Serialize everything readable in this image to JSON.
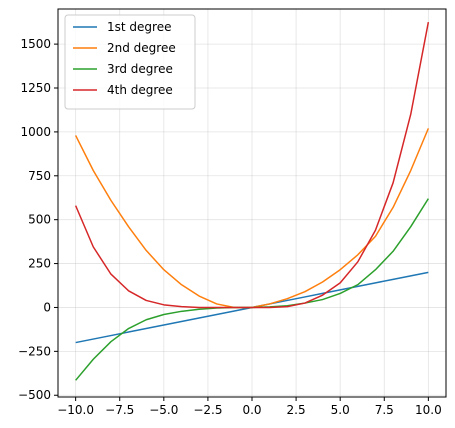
{
  "chart_data": {
    "type": "line",
    "title": "",
    "xlabel": "",
    "ylabel": "",
    "xlim": [
      -11,
      11
    ],
    "ylim": [
      -510,
      1700
    ],
    "grid": true,
    "legend_position": "top-left",
    "xticks": [
      -10,
      -7.5,
      -5,
      -2.5,
      0,
      2.5,
      5,
      7.5,
      10
    ],
    "xtick_labels": [
      "−10.0",
      "−7.5",
      "−5.0",
      "−2.5",
      "0.0",
      "2.5",
      "5.0",
      "7.5",
      "10.0"
    ],
    "yticks": [
      -500,
      -250,
      0,
      250,
      500,
      750,
      1000,
      1250,
      1500
    ],
    "ytick_labels": [
      "−500",
      "−250",
      "0",
      "250",
      "500",
      "750",
      "1000",
      "1250",
      "1500"
    ],
    "x": [
      -10,
      -9,
      -8,
      -7,
      -6,
      -5,
      -4,
      -3,
      -2,
      -1,
      0,
      1,
      2,
      3,
      4,
      5,
      6,
      7,
      8,
      9,
      10
    ],
    "series": [
      {
        "name": "1st degree",
        "color": "#1f77b4",
        "values": [
          -200,
          -180,
          -160,
          -140,
          -120,
          -100,
          -80,
          -60,
          -40,
          -20,
          0,
          20,
          40,
          60,
          80,
          100,
          120,
          140,
          160,
          180,
          200
        ]
      },
      {
        "name": "2nd degree",
        "color": "#ff7f0e",
        "values": [
          980,
          780,
          610,
          460,
          325,
          215,
          130,
          65,
          20,
          0,
          0,
          20,
          50,
          90,
          145,
          215,
          300,
          405,
          570,
          780,
          1020
        ]
      },
      {
        "name": "3rd degree",
        "color": "#2ca02c",
        "values": [
          -415,
          -295,
          -195,
          -120,
          -70,
          -40,
          -22,
          -10,
          -3,
          0,
          0,
          3,
          10,
          25,
          45,
          80,
          130,
          215,
          320,
          460,
          620
        ]
      },
      {
        "name": "4th degree",
        "color": "#d62728",
        "values": [
          580,
          345,
          190,
          95,
          40,
          15,
          5,
          0,
          0,
          0,
          0,
          0,
          5,
          25,
          70,
          140,
          260,
          440,
          710,
          1100,
          1625
        ]
      }
    ]
  }
}
